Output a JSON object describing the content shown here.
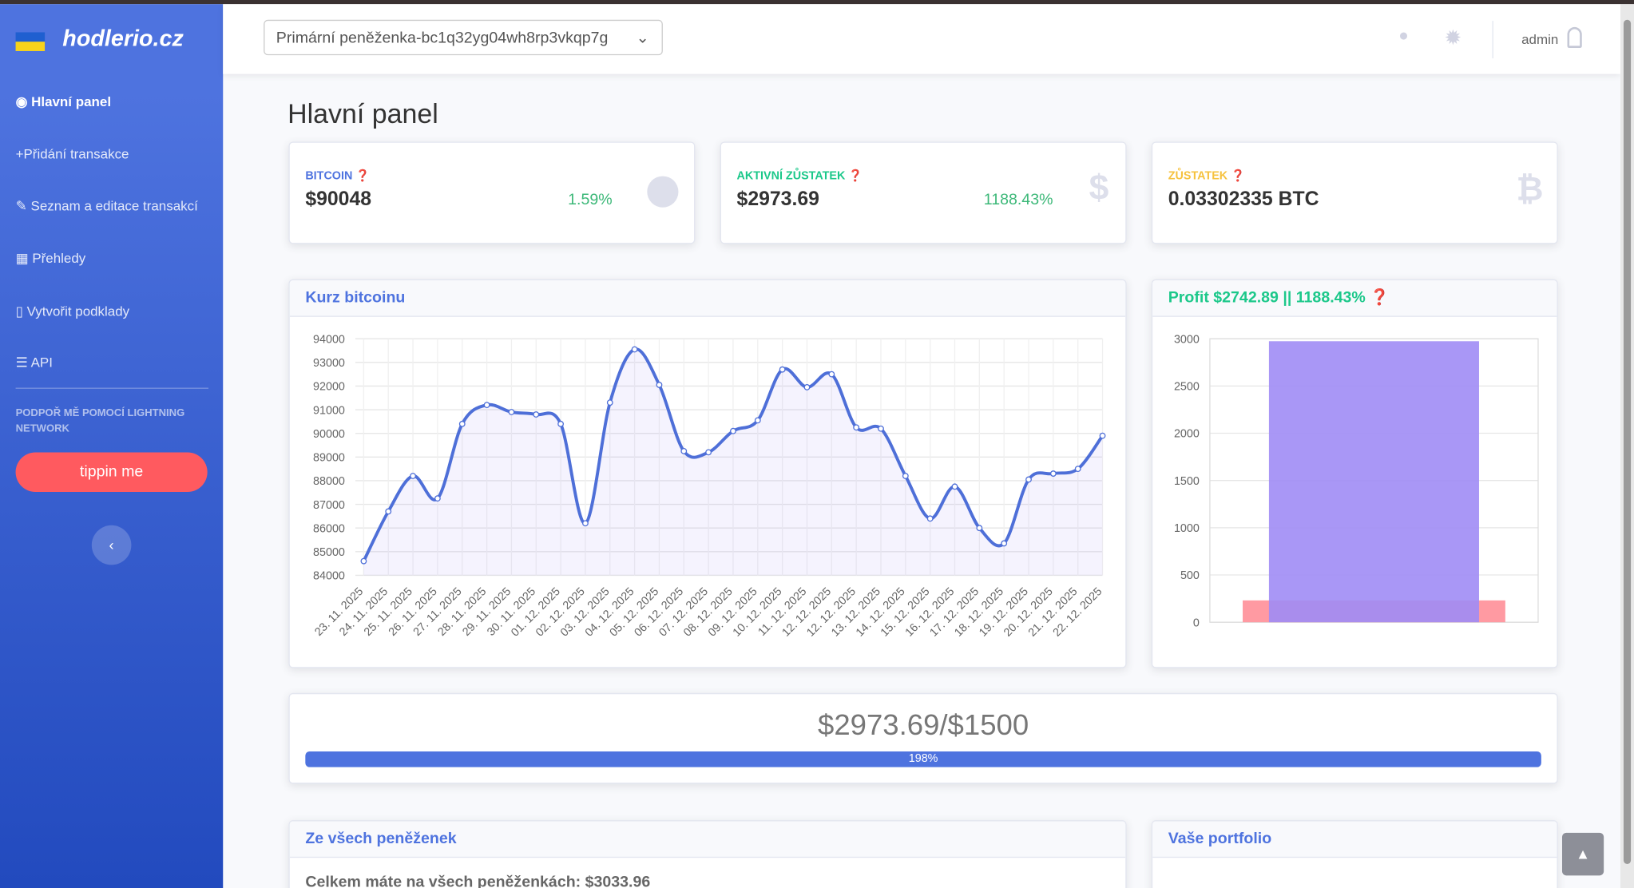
{
  "brand": "hodlerio.cz",
  "sidebar": {
    "nav": [
      "Hlavní panel",
      "Přidání transakce",
      "Seznam a editace transakcí",
      "Přehledy",
      "Vytvořit podklady",
      "API"
    ],
    "support": "PODPOŘ MĚ POMOCÍ LIGHTNING NETWORK",
    "tip_button": "tippin me"
  },
  "topbar": {
    "wallet": "Primární peněženka-bc1q32yg04wh8rp3vkqp7g",
    "user": "admin"
  },
  "page_title": "Hlavní panel",
  "cards": [
    {
      "label": "BITCOIN",
      "value": "$90048",
      "change": "1.59%"
    },
    {
      "label": "AKTIVNÍ ZŮSTATEK",
      "value": "$2973.69",
      "change": "1188.43%"
    },
    {
      "label": "ZŮSTATEK",
      "value": "0.03302335 BTC"
    }
  ],
  "progress": {
    "text": "$2973.69/$1500",
    "label": "198%"
  },
  "bottom": {
    "left_title": "Ze všech peněženek",
    "left_text": "Celkem máte na všech peněženkách: $3033.96",
    "right_title": "Vaše portfolio"
  },
  "chart_data": [
    {
      "type": "line",
      "title": "Kurz bitcoinu",
      "color": "#4e6fd8",
      "grid": true,
      "categories": [
        "23. 11. 2025",
        "24. 11. 2025",
        "25. 11. 2025",
        "26. 11. 2025",
        "27. 11. 2025",
        "28. 11. 2025",
        "29. 11. 2025",
        "30. 11. 2025",
        "01. 12. 2025",
        "02. 12. 2025",
        "03. 12. 2025",
        "04. 12. 2025",
        "05. 12. 2025",
        "06. 12. 2025",
        "07. 12. 2025",
        "08. 12. 2025",
        "09. 12. 2025",
        "10. 12. 2025",
        "11. 12. 2025",
        "12. 12. 2025",
        "12. 12. 2025",
        "13. 12. 2025",
        "14. 12. 2025",
        "15. 12. 2025",
        "16. 12. 2025",
        "17. 12. 2025",
        "18. 12. 2025",
        "19. 12. 2025",
        "20. 12. 2025",
        "21. 12. 2025",
        "22. 12. 2025"
      ],
      "values": [
        84600,
        86700,
        88200,
        87250,
        90400,
        91200,
        90900,
        90800,
        90400,
        86200,
        91300,
        93550,
        92050,
        89250,
        89200,
        90100,
        90550,
        92700,
        91950,
        92500,
        90250,
        90200,
        88200,
        86400,
        87750,
        86000,
        85350,
        88050,
        88300,
        88500,
        89900
      ],
      "ylim": [
        84000,
        94000
      ],
      "yticks": [
        84000,
        85000,
        86000,
        87000,
        88000,
        89000,
        90000,
        91000,
        92000,
        93000,
        94000
      ]
    },
    {
      "type": "bar",
      "title": "Profit $2742.89 || 1188.43%",
      "grid": true,
      "categories": [
        null
      ],
      "series": [
        {
          "color": "#ff9aa2",
          "values": [
            230.8
          ]
        },
        {
          "color": "#a08cf5",
          "values": [
            2973.69
          ]
        }
      ],
      "ylim": [
        0,
        3000
      ],
      "yticks": [
        0,
        500,
        1000,
        1500,
        2000,
        2500,
        3000
      ]
    }
  ]
}
